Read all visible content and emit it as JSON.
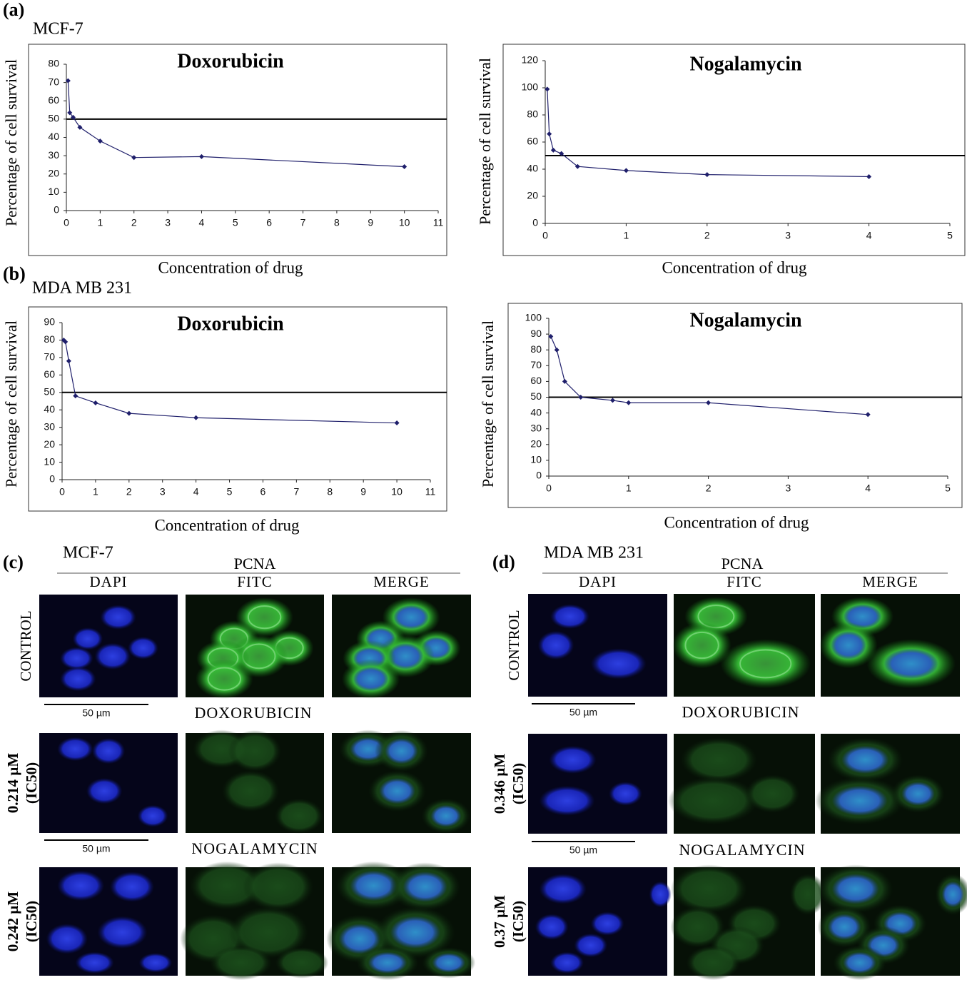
{
  "panel_labels": [
    "(a)",
    "(b)"
  ],
  "chart_data": [
    {
      "type": "line",
      "subtitle": "MCF-7",
      "title": "Doxorubicin",
      "xlabel": "Concentration of drug",
      "ylabel": "Percentage of cell survival",
      "x": [
        0.05,
        0.1,
        0.2,
        0.4,
        1,
        2,
        4,
        10
      ],
      "values": [
        71,
        53.5,
        51,
        45.5,
        38,
        29,
        29.5,
        24
      ],
      "color": "#1f1f6b",
      "reference_line": 50,
      "xlim": [
        0,
        11
      ],
      "xticks": [
        0,
        1,
        2,
        3,
        4,
        5,
        6,
        7,
        8,
        9,
        10,
        11
      ],
      "ylim": [
        0,
        80
      ],
      "yticks": [
        0,
        10,
        20,
        30,
        40,
        50,
        60,
        70,
        80
      ]
    },
    {
      "type": "line",
      "title": "Nogalamycin",
      "xlabel": "Concentration of drug",
      "ylabel": "Percentage of cell survival",
      "x": [
        0.025,
        0.05,
        0.1,
        0.2,
        0.4,
        1,
        2,
        4
      ],
      "values": [
        99,
        66,
        54,
        51.5,
        42,
        39,
        36,
        34.5
      ],
      "color": "#1f1f6b",
      "reference_line": 50,
      "xlim": [
        0,
        5
      ],
      "xticks": [
        0,
        1,
        2,
        3,
        4,
        5
      ],
      "ylim": [
        0,
        120
      ],
      "yticks": [
        0,
        20,
        40,
        60,
        80,
        100,
        120
      ]
    },
    {
      "type": "line",
      "subtitle": "MDA MB 231",
      "title": "Doxorubicin",
      "xlabel": "Concentration of drug",
      "ylabel": "Percentage of cell survival",
      "x": [
        0.05,
        0.1,
        0.2,
        0.4,
        1,
        2,
        4,
        10
      ],
      "values": [
        80,
        79,
        68,
        48,
        44,
        38,
        35.5,
        32.5
      ],
      "color": "#1f1f6b",
      "reference_line": 50,
      "xlim": [
        0,
        11
      ],
      "xticks": [
        0,
        1,
        2,
        3,
        4,
        5,
        6,
        7,
        8,
        9,
        10,
        11
      ],
      "ylim": [
        0,
        90
      ],
      "yticks": [
        0,
        10,
        20,
        30,
        40,
        50,
        60,
        70,
        80,
        90
      ]
    },
    {
      "type": "line",
      "title": "Nogalamycin",
      "xlabel": "Concentration of drug",
      "ylabel": "Percentage of cell survival",
      "x": [
        0.025,
        0.1,
        0.2,
        0.4,
        0.8,
        1,
        2,
        4
      ],
      "values": [
        88.5,
        80,
        60,
        50,
        48,
        46.5,
        46.5,
        39
      ],
      "color": "#1f1f6b",
      "reference_line": 50,
      "xlim": [
        0,
        5
      ],
      "xticks": [
        0,
        1,
        2,
        3,
        4,
        5
      ],
      "ylim": [
        0,
        100
      ],
      "yticks": [
        0,
        10,
        20,
        30,
        40,
        50,
        60,
        70,
        80,
        90,
        100
      ]
    }
  ],
  "microscopy": [
    {
      "label": "(c)",
      "cell_line": "MCF-7",
      "stain": "PCNA",
      "columns": [
        "DAPI",
        "FITC",
        "MERGE"
      ],
      "scale_bar": "50 µm",
      "rows": [
        {
          "label": [
            "CONTROL"
          ]
        },
        {
          "treatment": "DOXORUBICIN",
          "label": [
            "0.214 µM",
            "(IC50)"
          ]
        },
        {
          "treatment": "NOGALAMYCIN",
          "label": [
            "0.242 µM",
            "(IC50)"
          ]
        }
      ]
    },
    {
      "label": "(d)",
      "cell_line": "MDA MB 231",
      "stain": "PCNA",
      "columns": [
        "DAPI",
        "FITC",
        "MERGE"
      ],
      "scale_bar": "50 µm",
      "rows": [
        {
          "label": [
            "CONTROL"
          ]
        },
        {
          "treatment": "DOXORUBICIN",
          "label": [
            "0.346 µM",
            "(IC50)"
          ]
        },
        {
          "treatment": "NOGALAMYCIN",
          "label": [
            "0.37 µM",
            "(IC50)"
          ]
        }
      ]
    }
  ]
}
